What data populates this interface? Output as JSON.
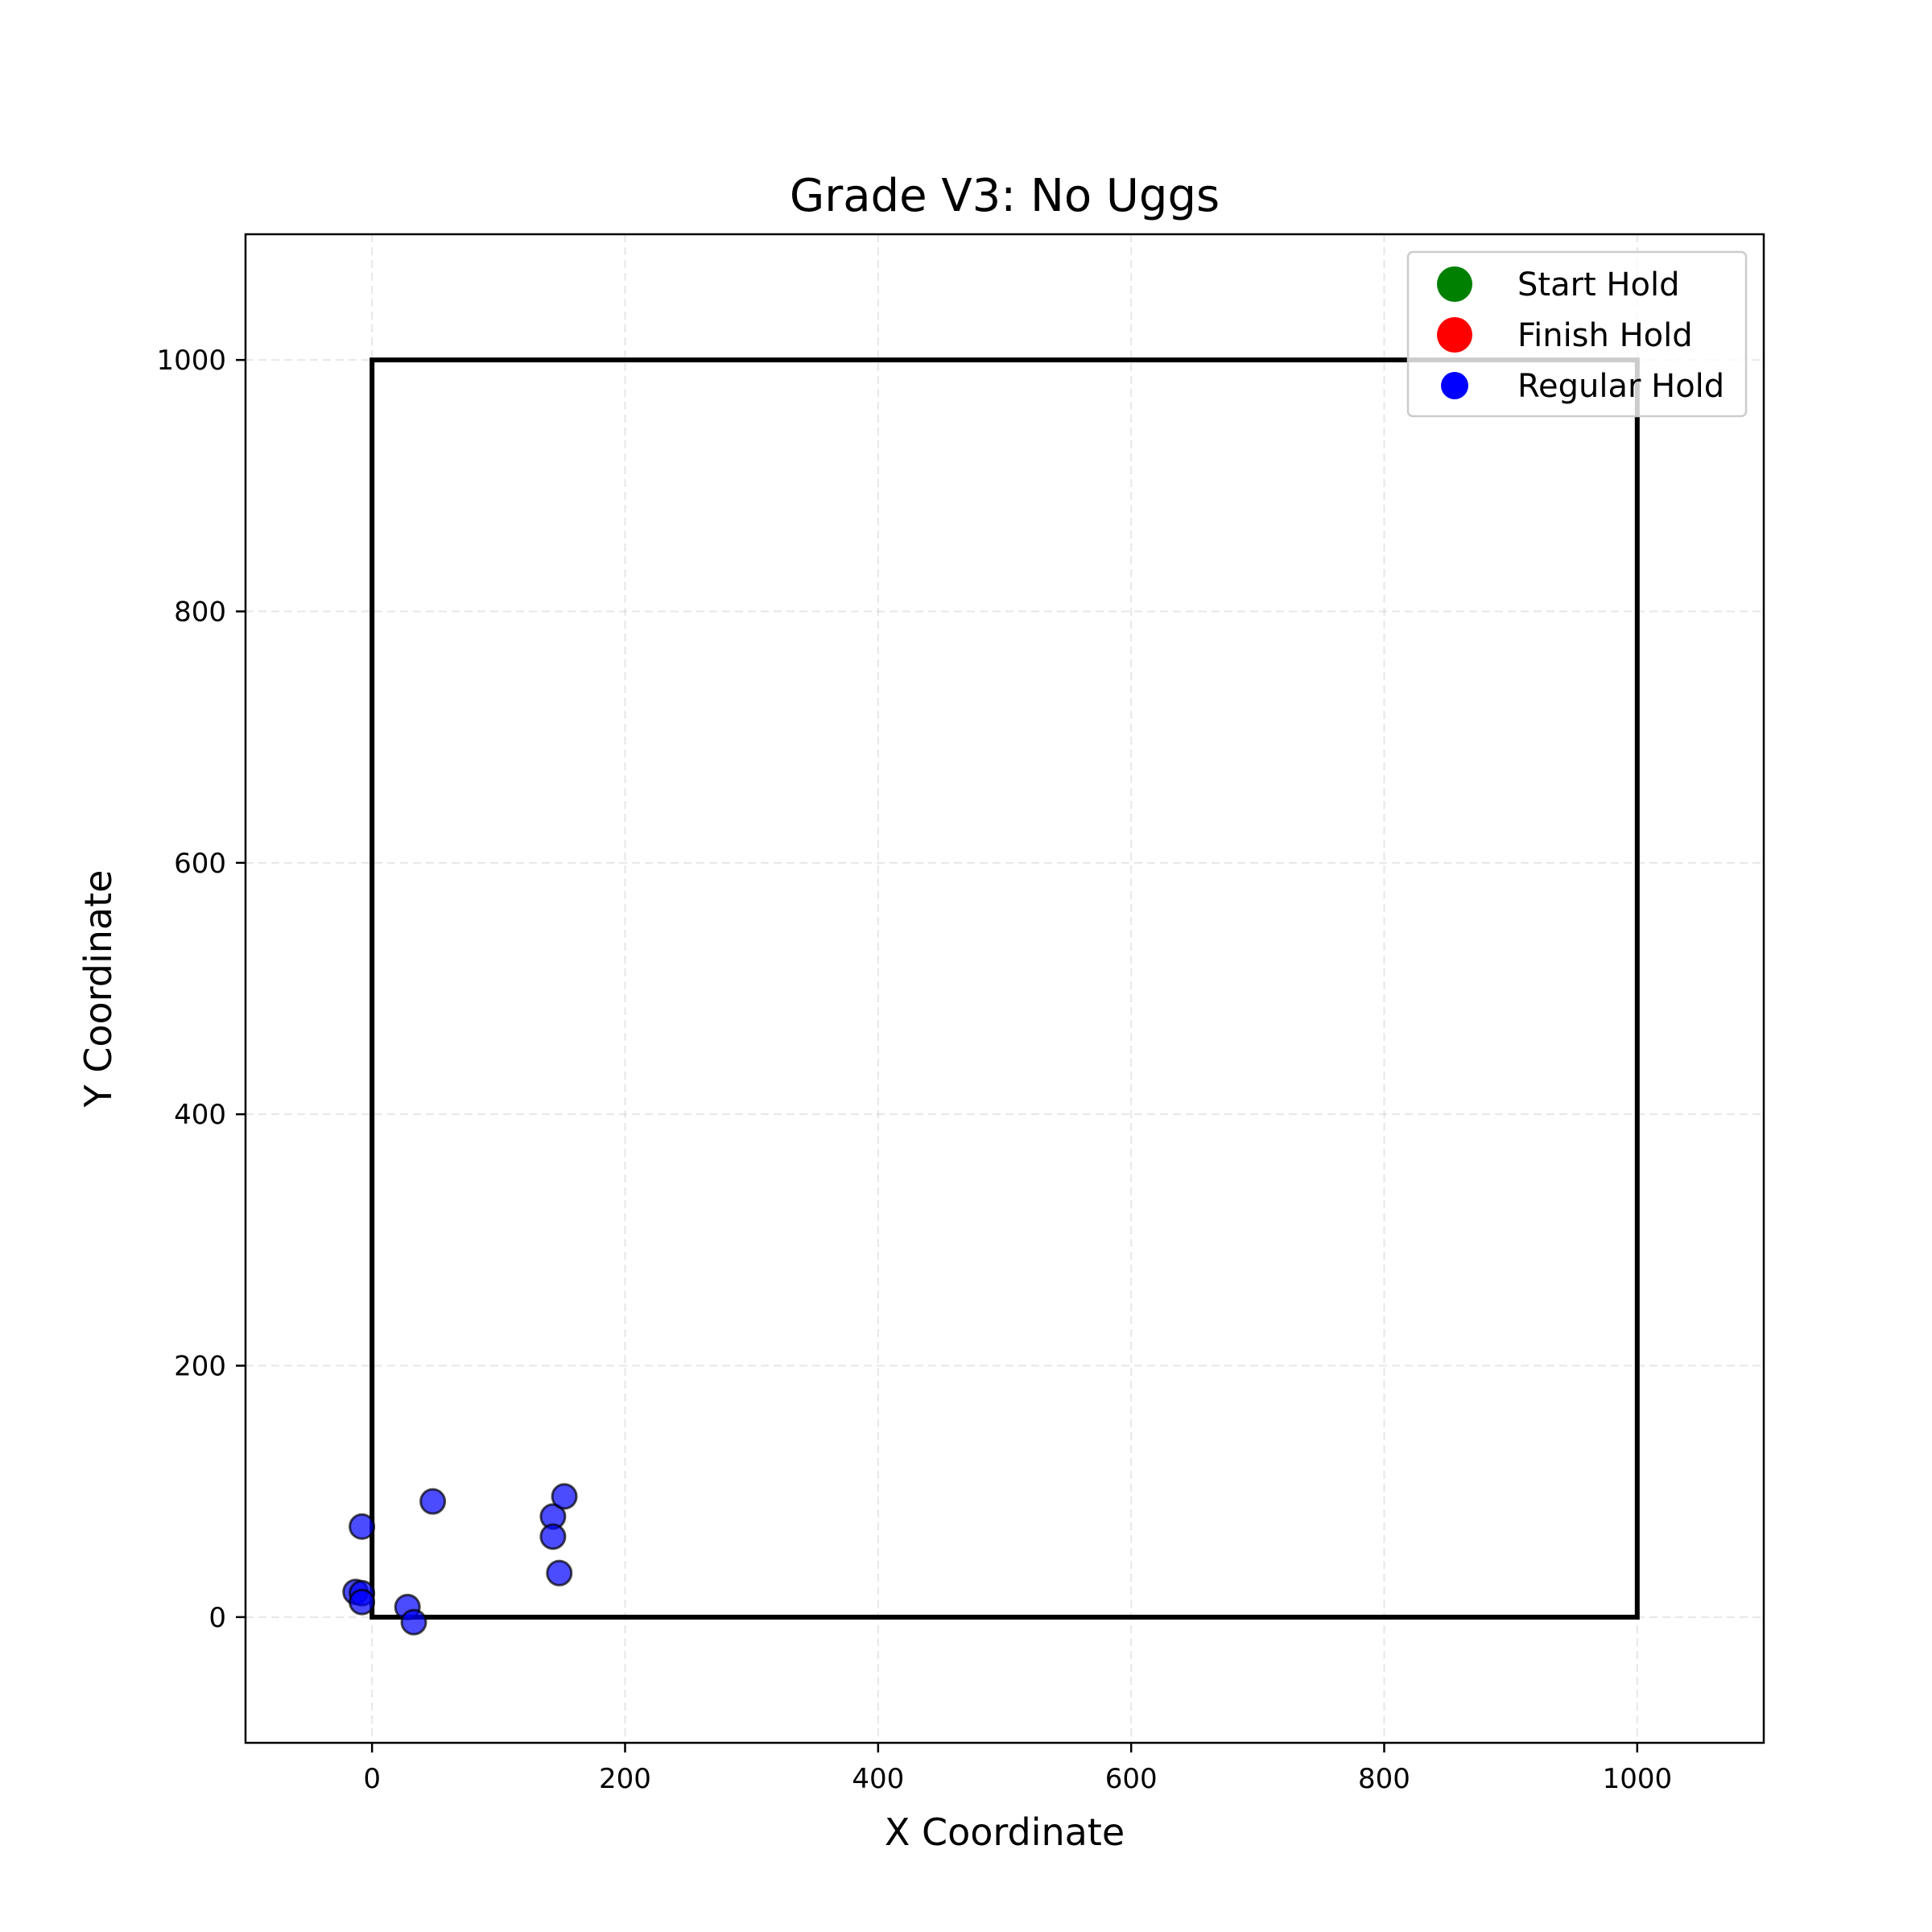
{
  "chart_data": {
    "type": "scatter",
    "title": "Grade V3: No Uggs",
    "xlabel": "X Coordinate",
    "ylabel": "Y Coordinate",
    "xlim": [
      -100,
      1100
    ],
    "ylim": [
      -100,
      1100
    ],
    "xticks": [
      0,
      200,
      400,
      600,
      800,
      1000
    ],
    "yticks": [
      0,
      200,
      400,
      600,
      800,
      1000
    ],
    "grid": true,
    "legend_position": "upper-right",
    "wall_outline": {
      "x": [
        0,
        0,
        1000,
        1000
      ],
      "y": [
        0,
        1000,
        1000,
        0
      ]
    },
    "legend": [
      {
        "label": "Start Hold",
        "color": "#008000"
      },
      {
        "label": "Finish Hold",
        "color": "#ff0000"
      },
      {
        "label": "Regular Hold",
        "color": "#0000ff"
      }
    ],
    "series": [
      {
        "name": "Start Hold",
        "color": "#008000",
        "points": []
      },
      {
        "name": "Finish Hold",
        "color": "#ff0000",
        "points": []
      },
      {
        "name": "Regular Hold",
        "color": "#0000ff",
        "points": [
          {
            "x": -8,
            "y": 72
          },
          {
            "x": 48,
            "y": 92
          },
          {
            "x": 143,
            "y": 80
          },
          {
            "x": 152,
            "y": 96
          },
          {
            "x": 143,
            "y": 64
          },
          {
            "x": 148,
            "y": 35
          },
          {
            "x": -13,
            "y": 20
          },
          {
            "x": -8,
            "y": 19
          },
          {
            "x": -8,
            "y": 12
          },
          {
            "x": 28,
            "y": 8
          },
          {
            "x": 33,
            "y": -4
          }
        ]
      }
    ]
  }
}
